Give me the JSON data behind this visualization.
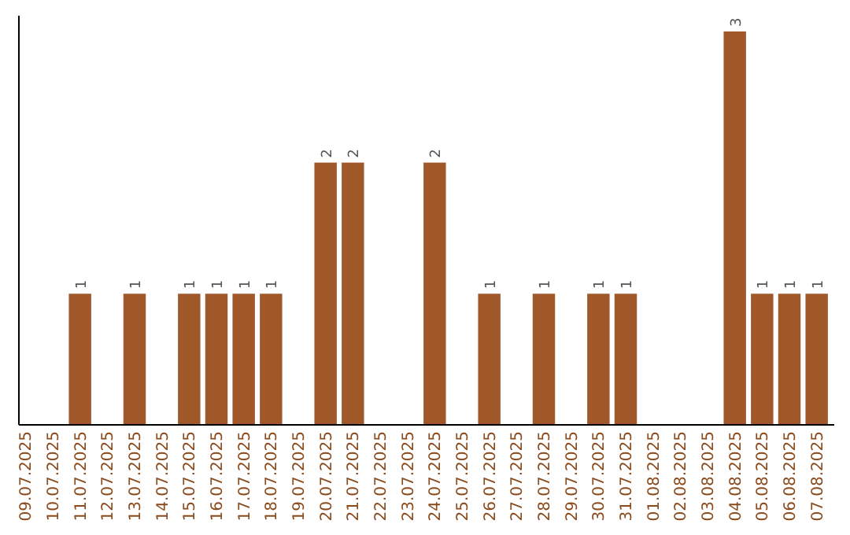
{
  "chart_data": {
    "type": "bar",
    "categories": [
      "09.07.2025",
      "10.07.2025",
      "11.07.2025",
      "12.07.2025",
      "13.07.2025",
      "14.07.2025",
      "15.07.2025",
      "16.07.2025",
      "17.07.2025",
      "18.07.2025",
      "19.07.2025",
      "20.07.2025",
      "21.07.2025",
      "22.07.2025",
      "23.07.2025",
      "24.07.2025",
      "25.07.2025",
      "26.07.2025",
      "27.07.2025",
      "28.07.2025",
      "29.07.2025",
      "30.07.2025",
      "31.07.2025",
      "01.08.2025",
      "02.08.2025",
      "03.08.2025",
      "04.08.2025",
      "05.08.2025",
      "06.08.2025",
      "07.08.2025"
    ],
    "values": [
      0,
      0,
      1,
      0,
      1,
      0,
      1,
      1,
      1,
      1,
      0,
      2,
      2,
      0,
      0,
      2,
      0,
      1,
      0,
      1,
      0,
      1,
      1,
      0,
      0,
      0,
      3,
      1,
      1,
      1
    ],
    "value_labels": [
      null,
      null,
      "1",
      null,
      "1",
      null,
      "1",
      "1",
      "1",
      "1",
      null,
      "2",
      "2",
      null,
      null,
      "2",
      null,
      "1",
      null,
      "1",
      null,
      "1",
      "1",
      null,
      null,
      null,
      "3",
      "1",
      "1",
      "1"
    ],
    "color": "#a0572a",
    "tick_labels": "x"
  }
}
